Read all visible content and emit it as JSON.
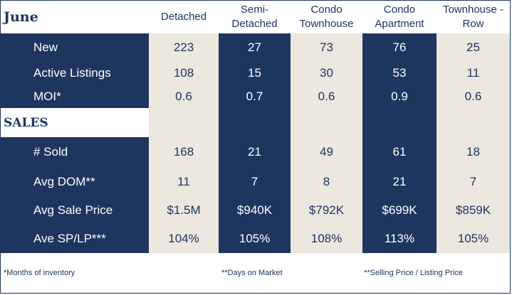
{
  "month": "June",
  "columns": [
    [
      "Detached"
    ],
    [
      "Semi-",
      "Detached"
    ],
    [
      "Condo",
      "Townhouse"
    ],
    [
      "Condo",
      "Apartment"
    ],
    [
      "Townhouse -",
      "Row"
    ]
  ],
  "listings": {
    "rows": [
      {
        "label": "New",
        "values": [
          "223",
          "27",
          "73",
          "76",
          "25"
        ]
      },
      {
        "label": "Active Listings",
        "values": [
          "108",
          "15",
          "30",
          "53",
          "11"
        ]
      },
      {
        "label": "MOI*",
        "values": [
          "0.6",
          "0.7",
          "0.6",
          "0.9",
          "0.6"
        ]
      }
    ]
  },
  "sales": {
    "heading": "SALES",
    "rows": [
      {
        "label": "# Sold",
        "values": [
          "168",
          "21",
          "49",
          "61",
          "18"
        ]
      },
      {
        "label": "Avg DOM**",
        "values": [
          "11",
          "7",
          "8",
          "21",
          "7"
        ]
      },
      {
        "label": "Avg Sale Price",
        "values": [
          "$1.5M",
          "$940K",
          "$792K",
          "$699K",
          "$859K"
        ]
      },
      {
        "label": "Ave SP/LP***",
        "values": [
          "104%",
          "105%",
          "108%",
          "113%",
          "105%"
        ]
      }
    ]
  },
  "footnotes": [
    "*Months of inventory",
    "**Days on Market",
    "**Selling Price / Listing Price"
  ],
  "colors": {
    "navy": "#1e3560",
    "beige": "#ece8df",
    "white": "#ffffff"
  }
}
